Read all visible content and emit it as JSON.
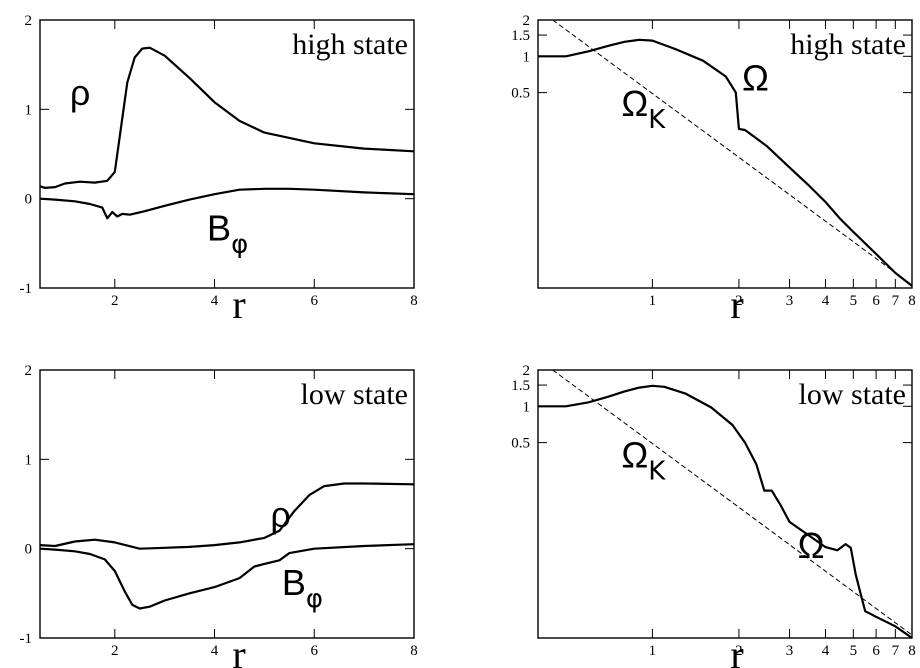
{
  "chart_data": [
    {
      "panel": "top-left",
      "type": "line",
      "state_label": "high state",
      "xlabel": "r",
      "ylabel": "",
      "xlim": [
        0.5,
        8
      ],
      "ylim": [
        -1,
        2
      ],
      "xscale": "linear",
      "yscale": "linear",
      "x_ticks": [
        2,
        4,
        6,
        8
      ],
      "x_tick_labels": [
        "2",
        "4",
        "6",
        "8"
      ],
      "y_ticks": [
        -1,
        0,
        1,
        2
      ],
      "y_tick_labels": [
        "-1",
        "0",
        "1",
        "2"
      ],
      "series": [
        {
          "name": "ρ",
          "label_main": "ρ",
          "label_sub": "",
          "label_at": [
            1.1,
            1.05
          ],
          "dashed": false,
          "x": [
            0.5,
            0.6,
            0.8,
            1.0,
            1.3,
            1.6,
            1.85,
            2.0,
            2.1,
            2.25,
            2.4,
            2.55,
            2.7,
            3.0,
            3.5,
            4.0,
            4.5,
            5.0,
            6.0,
            7.0,
            8.0
          ],
          "y": [
            0.14,
            0.12,
            0.13,
            0.17,
            0.19,
            0.18,
            0.2,
            0.3,
            0.7,
            1.3,
            1.58,
            1.68,
            1.69,
            1.6,
            1.35,
            1.08,
            0.87,
            0.74,
            0.62,
            0.56,
            0.53
          ]
        },
        {
          "name": "Bφ",
          "label_main": "B",
          "label_sub": "φ",
          "label_at": [
            3.85,
            -0.47
          ],
          "dashed": false,
          "x": [
            0.5,
            0.8,
            1.2,
            1.5,
            1.75,
            1.85,
            1.95,
            2.05,
            2.15,
            2.3,
            2.6,
            3.0,
            3.5,
            4.0,
            4.5,
            5.0,
            5.5,
            6.0,
            7.0,
            8.0
          ],
          "y": [
            0.0,
            -0.01,
            -0.03,
            -0.06,
            -0.1,
            -0.22,
            -0.15,
            -0.2,
            -0.17,
            -0.18,
            -0.14,
            -0.08,
            -0.01,
            0.05,
            0.1,
            0.11,
            0.11,
            0.1,
            0.07,
            0.05
          ]
        }
      ]
    },
    {
      "panel": "top-right",
      "type": "line",
      "state_label": "high state",
      "xlabel": "r",
      "ylabel": "",
      "xlim": [
        0.4,
        8
      ],
      "ylim": [
        0.012,
        2
      ],
      "xscale": "log",
      "yscale": "log",
      "x_ticks": [
        1,
        2,
        3,
        4,
        5,
        6,
        7,
        8
      ],
      "x_tick_labels": [
        "1",
        "2",
        "3",
        "4",
        "5",
        "6",
        "7",
        "8"
      ],
      "y_ticks": [
        0.5,
        1,
        1.5,
        2
      ],
      "y_tick_labels": [
        "0.5",
        "1",
        "1.5",
        "2"
      ],
      "series": [
        {
          "name": "ΩK",
          "label_main": "Ω",
          "label_sub": "K",
          "label_at": [
            0.78,
            0.32
          ],
          "dashed": true,
          "x": [
            0.45,
            8.0
          ],
          "y": [
            2.0,
            0.0127
          ]
        },
        {
          "name": "Ω",
          "label_main": "Ω",
          "label_sub": "",
          "label_at": [
            2.05,
            0.52
          ],
          "dashed": false,
          "x": [
            0.4,
            0.5,
            0.6,
            0.7,
            0.8,
            0.9,
            1.0,
            1.2,
            1.5,
            1.8,
            1.95,
            2.0,
            2.1,
            2.5,
            3.0,
            3.5,
            4.0,
            4.5,
            5.0,
            6.0,
            7.0,
            8.0
          ],
          "y": [
            1.0,
            1.0,
            1.1,
            1.22,
            1.32,
            1.37,
            1.35,
            1.15,
            0.92,
            0.68,
            0.5,
            0.25,
            0.245,
            0.18,
            0.12,
            0.085,
            0.062,
            0.045,
            0.035,
            0.023,
            0.016,
            0.0125
          ]
        }
      ]
    },
    {
      "panel": "bottom-left",
      "type": "line",
      "state_label": "low state",
      "xlabel": "r",
      "ylabel": "",
      "xlim": [
        0.5,
        8
      ],
      "ylim": [
        -1,
        2
      ],
      "xscale": "linear",
      "yscale": "linear",
      "x_ticks": [
        2,
        4,
        6,
        8
      ],
      "x_tick_labels": [
        "2",
        "4",
        "6",
        "8"
      ],
      "y_ticks": [
        -1,
        0,
        1,
        2
      ],
      "y_tick_labels": [
        "-1",
        "0",
        "1",
        "2"
      ],
      "series": [
        {
          "name": "ρ",
          "label_main": "ρ",
          "label_sub": "",
          "label_at": [
            5.12,
            0.24
          ],
          "dashed": false,
          "x": [
            0.5,
            0.8,
            1.2,
            1.6,
            2.0,
            2.5,
            3.0,
            3.5,
            4.0,
            4.5,
            5.0,
            5.3,
            5.6,
            5.9,
            6.2,
            6.6,
            7.0,
            8.0
          ],
          "y": [
            0.04,
            0.03,
            0.08,
            0.1,
            0.07,
            0.0,
            0.01,
            0.02,
            0.04,
            0.07,
            0.12,
            0.2,
            0.42,
            0.6,
            0.7,
            0.73,
            0.73,
            0.72
          ]
        },
        {
          "name": "Bφ",
          "label_main": "B",
          "label_sub": "φ",
          "label_at": [
            5.35,
            -0.52
          ],
          "dashed": false,
          "x": [
            0.5,
            0.8,
            1.2,
            1.5,
            1.8,
            2.0,
            2.2,
            2.35,
            2.5,
            2.7,
            3.0,
            3.5,
            4.0,
            4.5,
            4.8,
            5.0,
            5.3,
            5.5,
            6.0,
            7.0,
            8.0
          ],
          "y": [
            0.0,
            -0.01,
            -0.03,
            -0.06,
            -0.12,
            -0.25,
            -0.48,
            -0.63,
            -0.67,
            -0.65,
            -0.58,
            -0.5,
            -0.43,
            -0.33,
            -0.2,
            -0.17,
            -0.13,
            -0.05,
            0.0,
            0.03,
            0.05
          ]
        }
      ]
    },
    {
      "panel": "bottom-right",
      "type": "line",
      "state_label": "low state",
      "xlabel": "r",
      "ylabel": "",
      "xlim": [
        0.4,
        8
      ],
      "ylim": [
        0.012,
        2
      ],
      "xscale": "log",
      "yscale": "log",
      "x_ticks": [
        1,
        2,
        3,
        4,
        5,
        6,
        7,
        8
      ],
      "x_tick_labels": [
        "1",
        "2",
        "3",
        "4",
        "5",
        "6",
        "7",
        "8"
      ],
      "y_ticks": [
        0.5,
        1,
        1.5,
        2
      ],
      "y_tick_labels": [
        "0.5",
        "1",
        "1.5",
        "2"
      ],
      "series": [
        {
          "name": "ΩK",
          "label_main": "Ω",
          "label_sub": "K",
          "label_at": [
            0.78,
            0.31
          ],
          "dashed": true,
          "x": [
            0.45,
            8.0
          ],
          "y": [
            2.0,
            0.0127
          ]
        },
        {
          "name": "Ω",
          "label_main": "Ω",
          "label_sub": "",
          "label_at": [
            3.2,
            0.055
          ],
          "dashed": false,
          "x": [
            0.4,
            0.5,
            0.6,
            0.7,
            0.8,
            0.9,
            1.0,
            1.1,
            1.3,
            1.6,
            1.9,
            2.1,
            2.3,
            2.45,
            2.6,
            2.8,
            3.0,
            3.5,
            4.0,
            4.4,
            4.7,
            4.9,
            5.1,
            5.3,
            5.5,
            6.0,
            7.0,
            8.0
          ],
          "y": [
            1.0,
            1.0,
            1.08,
            1.2,
            1.33,
            1.43,
            1.48,
            1.45,
            1.28,
            0.98,
            0.7,
            0.5,
            0.33,
            0.2,
            0.2,
            0.15,
            0.11,
            0.085,
            0.068,
            0.064,
            0.072,
            0.067,
            0.04,
            0.028,
            0.02,
            0.018,
            0.015,
            0.012
          ]
        }
      ]
    }
  ]
}
